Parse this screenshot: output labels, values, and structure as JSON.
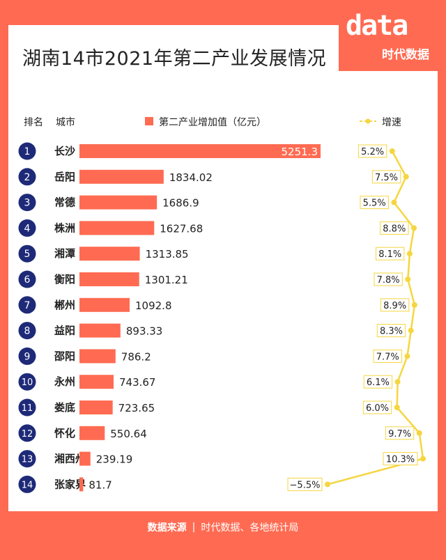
{
  "title": "湖南14市2021年第二产业发展情况",
  "logo": {
    "top_text": "data",
    "bottom_text": "时代数据"
  },
  "headers": {
    "rank": "排名",
    "city": "城市",
    "value_legend": "第二产业增加值（亿元）",
    "growth_legend": "增速"
  },
  "colors": {
    "background": "#ff6b52",
    "bar": "#ff6b52",
    "rank_circle": "#1e2a78",
    "growth_line": "#f5d640"
  },
  "chart_data": {
    "type": "bar",
    "orientation": "horizontal",
    "categories": [
      "长沙",
      "岳阳",
      "常德",
      "株洲",
      "湘潭",
      "衡阳",
      "郴州",
      "益阳",
      "邵阳",
      "永州",
      "娄底",
      "怀化",
      "湘西州",
      "张家界"
    ],
    "ranks": [
      "1",
      "2",
      "3",
      "4",
      "5",
      "6",
      "7",
      "8",
      "9",
      "10",
      "11",
      "12",
      "13",
      "14"
    ],
    "series": [
      {
        "name": "第二产业增加值（亿元）",
        "values": [
          5251.3,
          1834.02,
          1686.9,
          1627.68,
          1313.85,
          1301.21,
          1092.8,
          893.33,
          786.2,
          743.67,
          723.65,
          550.64,
          239.19,
          81.7
        ],
        "labels": [
          "5251.3",
          "1834.02",
          "1686.9",
          "1627.68",
          "1313.85",
          "1301.21",
          "1092.8",
          "893.33",
          "786.2",
          "743.67",
          "723.65",
          "550.64",
          "239.19",
          "81.7"
        ]
      },
      {
        "name": "增速",
        "type": "line",
        "values": [
          5.2,
          7.5,
          5.5,
          8.8,
          8.1,
          7.8,
          8.9,
          8.3,
          7.7,
          6.1,
          6.0,
          9.7,
          10.3,
          -5.5
        ],
        "labels": [
          "5.2%",
          "7.5%",
          "5.5%",
          "8.8%",
          "8.1%",
          "7.8%",
          "8.9%",
          "8.3%",
          "7.7%",
          "6.1%",
          "6.0%",
          "9.7%",
          "10.3%",
          "−5.5%"
        ]
      }
    ]
  },
  "footer": {
    "source_label": "数据来源",
    "separator": "|",
    "source_text": "时代数据、各地统计局"
  }
}
